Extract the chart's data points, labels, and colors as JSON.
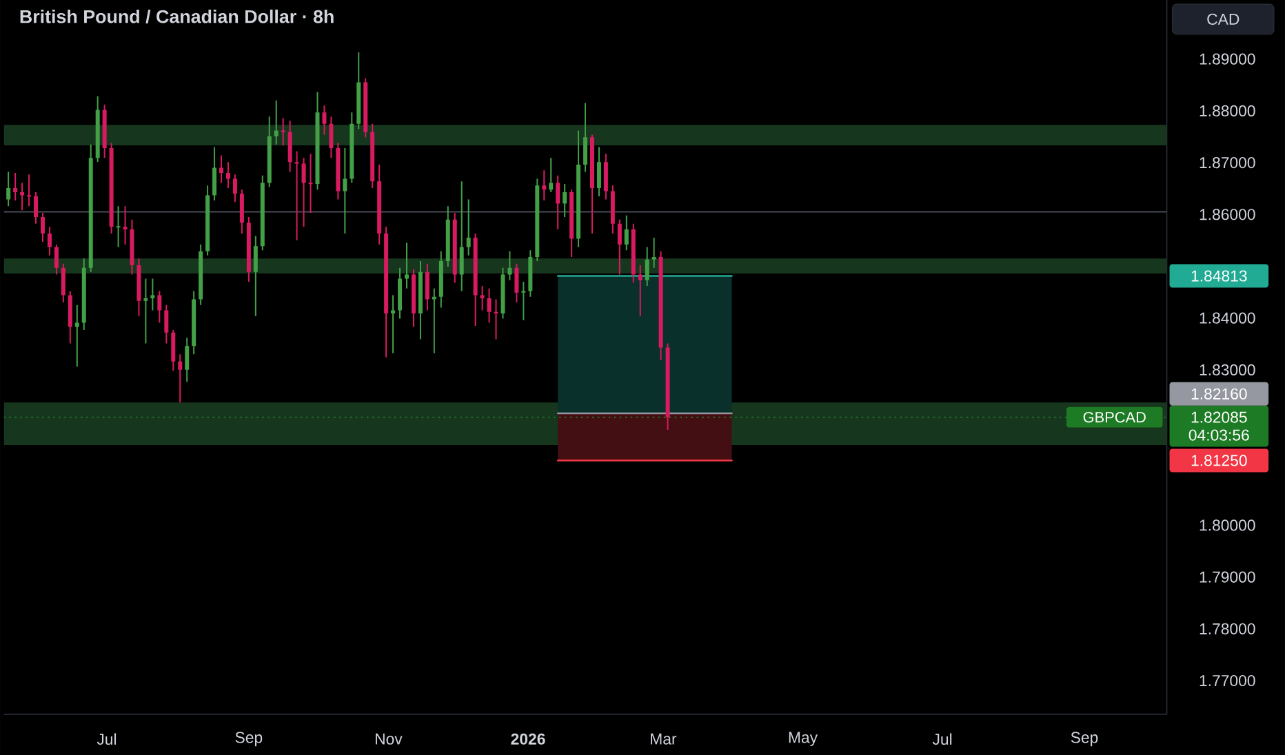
{
  "chart_data": {
    "type": "candlestick",
    "title": "British Pound / Canadian Dollar · 8h",
    "ylabel": "CAD",
    "x": [
      "2025-05-19",
      "2025-05-22",
      "2025-05-25",
      "2025-05-28",
      "2025-05-31",
      "2025-06-03",
      "2025-06-06",
      "2025-06-09",
      "2025-06-12",
      "2025-06-15",
      "2025-06-18",
      "2025-06-21",
      "2025-06-24",
      "2025-06-27",
      "2025-06-30",
      "2025-07-03",
      "2025-07-06",
      "2025-07-09",
      "2025-07-12",
      "2025-07-15",
      "2025-07-18",
      "2025-07-21",
      "2025-07-24",
      "2025-07-27",
      "2025-07-30",
      "2025-08-02",
      "2025-08-05",
      "2025-08-08",
      "2025-08-11",
      "2025-08-14",
      "2025-08-17",
      "2025-08-20",
      "2025-08-23",
      "2025-08-26",
      "2025-08-29",
      "2025-09-01",
      "2025-09-04",
      "2025-09-07",
      "2025-09-10",
      "2025-09-13",
      "2025-09-16",
      "2025-09-19",
      "2025-09-22",
      "2025-09-25",
      "2025-09-28",
      "2025-10-01",
      "2025-10-04",
      "2025-10-07",
      "2025-10-10",
      "2025-10-13",
      "2025-10-16",
      "2025-10-19",
      "2025-10-22",
      "2025-10-25",
      "2025-10-28",
      "2025-10-31",
      "2025-11-03",
      "2025-11-06",
      "2025-11-09",
      "2025-11-12",
      "2025-11-15",
      "2025-11-18",
      "2025-11-21",
      "2025-11-24",
      "2025-11-27",
      "2025-11-30",
      "2025-12-03",
      "2025-12-06",
      "2025-12-09",
      "2025-12-12",
      "2025-12-15",
      "2025-12-18",
      "2025-12-21",
      "2025-12-24",
      "2025-12-27",
      "2025-12-30",
      "2026-01-02",
      "2026-01-05",
      "2026-01-08",
      "2026-01-11",
      "2026-01-14",
      "2026-01-17",
      "2026-01-20",
      "2026-01-23",
      "2026-01-26",
      "2026-01-29",
      "2026-02-01",
      "2026-02-04",
      "2026-02-07",
      "2026-02-10",
      "2026-02-13",
      "2026-02-16",
      "2026-02-19",
      "2026-02-22",
      "2026-02-25",
      "2026-02-28",
      "2026-03-03"
    ],
    "ohlc": [
      [
        1.8629,
        1.8682,
        1.8616,
        1.8651
      ],
      [
        1.8651,
        1.868,
        1.8627,
        1.8643
      ],
      [
        1.8643,
        1.8661,
        1.8608,
        1.8637
      ],
      [
        1.8637,
        1.8677,
        1.8616,
        1.8635
      ],
      [
        1.8635,
        1.8643,
        1.8582,
        1.8595
      ],
      [
        1.8595,
        1.8603,
        1.8547,
        1.8563
      ],
      [
        1.8563,
        1.8576,
        1.8521,
        1.8537
      ],
      [
        1.8537,
        1.8542,
        1.8484,
        1.8497
      ],
      [
        1.8497,
        1.8505,
        1.843,
        1.8444
      ],
      [
        1.8444,
        1.8452,
        1.8351,
        1.8383
      ],
      [
        1.8383,
        1.8425,
        1.8306,
        1.8391
      ],
      [
        1.8391,
        1.8515,
        1.8377,
        1.8497
      ],
      [
        1.8497,
        1.8735,
        1.8489,
        1.8709
      ],
      [
        1.8709,
        1.8828,
        1.8701,
        1.8802
      ],
      [
        1.8802,
        1.8812,
        1.8709,
        1.8728
      ],
      [
        1.8728,
        1.8738,
        1.8563,
        1.8576
      ],
      [
        1.8576,
        1.8616,
        1.8537,
        1.8576
      ],
      [
        1.8576,
        1.8616,
        1.8542,
        1.8571
      ],
      [
        1.8571,
        1.859,
        1.8484,
        1.8502
      ],
      [
        1.8502,
        1.8515,
        1.8404,
        1.8433
      ],
      [
        1.8433,
        1.8476,
        1.8351,
        1.8438
      ],
      [
        1.8438,
        1.8476,
        1.8415,
        1.8444
      ],
      [
        1.8444,
        1.8452,
        1.8391,
        1.8415
      ],
      [
        1.8415,
        1.8425,
        1.8351,
        1.8372
      ],
      [
        1.8372,
        1.8377,
        1.8298,
        1.8316
      ],
      [
        1.8316,
        1.833,
        1.8237,
        1.83
      ],
      [
        1.83,
        1.8362,
        1.8277,
        1.8346
      ],
      [
        1.8346,
        1.8452,
        1.833,
        1.8436
      ],
      [
        1.8436,
        1.8542,
        1.8425,
        1.8529
      ],
      [
        1.8529,
        1.8656,
        1.8521,
        1.8637
      ],
      [
        1.8637,
        1.873,
        1.8627,
        1.869
      ],
      [
        1.869,
        1.8714,
        1.8661,
        1.868
      ],
      [
        1.868,
        1.8701,
        1.8651,
        1.8669
      ],
      [
        1.8669,
        1.8677,
        1.8624,
        1.864
      ],
      [
        1.864,
        1.8648,
        1.8563,
        1.8584
      ],
      [
        1.8584,
        1.8595,
        1.847,
        1.8489
      ],
      [
        1.8489,
        1.8558,
        1.8404,
        1.8539
      ],
      [
        1.8539,
        1.8675,
        1.8531,
        1.8661
      ],
      [
        1.8661,
        1.8789,
        1.8653,
        1.8751
      ],
      [
        1.8751,
        1.882,
        1.8735,
        1.8762
      ],
      [
        1.8762,
        1.8786,
        1.8733,
        1.8759
      ],
      [
        1.8759,
        1.8781,
        1.8682,
        1.8701
      ],
      [
        1.8701,
        1.8722,
        1.855,
        1.8698
      ],
      [
        1.8698,
        1.8709,
        1.8576,
        1.8661
      ],
      [
        1.8661,
        1.8717,
        1.8603,
        1.8659
      ],
      [
        1.8659,
        1.8836,
        1.8648,
        1.8797
      ],
      [
        1.8797,
        1.881,
        1.8754,
        1.8775
      ],
      [
        1.8775,
        1.8789,
        1.8709,
        1.8728
      ],
      [
        1.8728,
        1.8738,
        1.8629,
        1.8645
      ],
      [
        1.8645,
        1.8728,
        1.8563,
        1.8669
      ],
      [
        1.8669,
        1.8797,
        1.8661,
        1.8775
      ],
      [
        1.8775,
        1.8913,
        1.8765,
        1.8855
      ],
      [
        1.8855,
        1.8863,
        1.8749,
        1.8759
      ],
      [
        1.8759,
        1.8775,
        1.8651,
        1.8664
      ],
      [
        1.8664,
        1.8696,
        1.8542,
        1.8563
      ],
      [
        1.8563,
        1.8576,
        1.8324,
        1.8409
      ],
      [
        1.8409,
        1.8444,
        1.8332,
        1.8415
      ],
      [
        1.8415,
        1.8497,
        1.8399,
        1.8476
      ],
      [
        1.8476,
        1.8545,
        1.8457,
        1.8484
      ],
      [
        1.8484,
        1.8494,
        1.8383,
        1.8409
      ],
      [
        1.8409,
        1.851,
        1.8359,
        1.8489
      ],
      [
        1.8489,
        1.8505,
        1.8415,
        1.8436
      ],
      [
        1.8436,
        1.8457,
        1.8332,
        1.8441
      ],
      [
        1.8441,
        1.8529,
        1.842,
        1.851
      ],
      [
        1.851,
        1.8616,
        1.8499,
        1.859
      ],
      [
        1.859,
        1.8603,
        1.8468,
        1.8484
      ],
      [
        1.8484,
        1.8664,
        1.8452,
        1.8537
      ],
      [
        1.8537,
        1.8629,
        1.8521,
        1.8555
      ],
      [
        1.8555,
        1.8563,
        1.8385,
        1.8444
      ],
      [
        1.8444,
        1.8462,
        1.8415,
        1.8438
      ],
      [
        1.8438,
        1.8457,
        1.8391,
        1.8412
      ],
      [
        1.8412,
        1.8436,
        1.8359,
        1.8409
      ],
      [
        1.8409,
        1.8497,
        1.8399,
        1.8484
      ],
      [
        1.8484,
        1.8529,
        1.8473,
        1.8497
      ],
      [
        1.8497,
        1.8505,
        1.843,
        1.8449
      ],
      [
        1.8449,
        1.847,
        1.8396,
        1.8452
      ],
      [
        1.8452,
        1.8531,
        1.8441,
        1.8518
      ],
      [
        1.8518,
        1.8669,
        1.851,
        1.8656
      ],
      [
        1.8656,
        1.8685,
        1.8627,
        1.8648
      ],
      [
        1.8648,
        1.8709,
        1.8643,
        1.8661
      ],
      [
        1.8661,
        1.8675,
        1.8571,
        1.8621
      ],
      [
        1.8621,
        1.8659,
        1.8595,
        1.8643
      ],
      [
        1.8643,
        1.8648,
        1.8518,
        1.8553
      ],
      [
        1.8553,
        1.8762,
        1.8537,
        1.8696
      ],
      [
        1.8696,
        1.8815,
        1.8682,
        1.8749
      ],
      [
        1.8749,
        1.8754,
        1.8563,
        1.8651
      ],
      [
        1.8651,
        1.873,
        1.8635,
        1.8701
      ],
      [
        1.8701,
        1.8717,
        1.8629,
        1.8645
      ],
      [
        1.8645,
        1.8656,
        1.8563,
        1.8582
      ],
      [
        1.8582,
        1.859,
        1.8484,
        1.8542
      ],
      [
        1.8542,
        1.8598,
        1.8531,
        1.8571
      ],
      [
        1.8571,
        1.8582,
        1.8468,
        1.8484
      ],
      [
        1.8484,
        1.8502,
        1.8404,
        1.8473
      ],
      [
        1.8473,
        1.8537,
        1.8462,
        1.8513
      ],
      [
        1.8513,
        1.8555,
        1.8497,
        1.8518
      ],
      [
        1.8518,
        1.8529,
        1.8319,
        1.8343
      ],
      [
        1.8343,
        1.8351,
        1.8184,
        1.82085
      ]
    ],
    "colors": [
      "#43a047",
      "#d81b60",
      "#d81b60",
      "#d81b60",
      "#d81b60",
      "#d81b60",
      "#d81b60",
      "#d81b60",
      "#d81b60",
      "#d81b60",
      "#43a047",
      "#43a047",
      "#43a047",
      "#43a047",
      "#d81b60",
      "#d81b60",
      "#43a047",
      "#d81b60",
      "#d81b60",
      "#d81b60",
      "#43a047",
      "#43a047",
      "#d81b60",
      "#d81b60",
      "#d81b60",
      "#d81b60",
      "#43a047",
      "#43a047",
      "#43a047",
      "#43a047",
      "#43a047",
      "#d81b60",
      "#d81b60",
      "#d81b60",
      "#d81b60",
      "#d81b60",
      "#43a047",
      "#43a047",
      "#43a047",
      "#43a047",
      "#d81b60",
      "#d81b60",
      "#d81b60",
      "#d81b60",
      "#d81b60",
      "#43a047",
      "#d81b60",
      "#d81b60",
      "#d81b60",
      "#43a047",
      "#43a047",
      "#43a047",
      "#d81b60",
      "#d81b60",
      "#d81b60",
      "#d81b60",
      "#43a047",
      "#43a047",
      "#43a047",
      "#d81b60",
      "#43a047",
      "#d81b60",
      "#43a047",
      "#43a047",
      "#43a047",
      "#d81b60",
      "#43a047",
      "#43a047",
      "#d81b60",
      "#d81b60",
      "#d81b60",
      "#d81b60",
      "#43a047",
      "#43a047",
      "#d81b60",
      "#43a047",
      "#43a047",
      "#43a047",
      "#d81b60",
      "#43a047",
      "#d81b60",
      "#43a047",
      "#d81b60",
      "#43a047",
      "#43a047",
      "#d81b60",
      "#43a047",
      "#d81b60",
      "#d81b60",
      "#d81b60",
      "#43a047",
      "#d81b60",
      "#d81b60",
      "#43a047",
      "#43a047",
      "#d81b60",
      "#d81b60"
    ],
    "series": [
      {
        "type": "line",
        "name": "1.84813",
        "x": [
          "2026-01-14",
          "2026-03-31"
        ],
        "values": [
          1.84813,
          1.84813
        ],
        "lower": [
          1.8216,
          1.8216
        ],
        "upper": [
          1.84813,
          1.84813
        ],
        "color": "#22ab94"
      },
      {
        "type": "line",
        "name": "1.82160",
        "x": [
          "2026-01-14",
          "2026-03-31"
        ],
        "values": [
          1.8216,
          1.8216
        ],
        "color": "#9598a1"
      },
      {
        "type": "line",
        "name": "1.81250",
        "x": [
          "2026-01-14",
          "2026-03-31"
        ],
        "values": [
          1.8125,
          1.8125
        ],
        "lower": [
          1.8125,
          1.8125
        ],
        "upper": [
          1.8216,
          1.8216
        ],
        "color": "#f23645"
      }
    ],
    "xlim": [
      "2025-05-17",
      "2026-10-07"
    ],
    "ylim": [
      1.7635,
      1.9014
    ],
    "xticks": [
      {
        "value": "2025-07-01",
        "label": "Jul"
      },
      {
        "value": "2025-09-01",
        "label": "Sep"
      },
      {
        "value": "2025-11-01",
        "label": "Nov"
      },
      {
        "value": "2026-01-01",
        "label": "2026"
      },
      {
        "value": "2026-03-01",
        "label": "Mar"
      },
      {
        "value": "2026-05-01",
        "label": "May"
      },
      {
        "value": "2026-07-01",
        "label": "Jul"
      },
      {
        "value": "2026-09-01",
        "label": "Sep"
      }
    ],
    "yticks": [
      {
        "value": 1.77,
        "label": "1.77000"
      },
      {
        "value": 1.78,
        "label": "1.78000"
      },
      {
        "value": 1.79,
        "label": "1.79000"
      },
      {
        "value": 1.8,
        "label": "1.80000"
      },
      {
        "value": 1.83,
        "label": "1.83000"
      },
      {
        "value": 1.84,
        "label": "1.84000"
      },
      {
        "value": 1.86,
        "label": "1.86000"
      },
      {
        "value": 1.87,
        "label": "1.87000"
      },
      {
        "value": 1.88,
        "label": "1.88000"
      },
      {
        "value": 1.89,
        "label": "1.89000"
      }
    ],
    "bands": [
      {
        "axis": "y",
        "from": 1.8733,
        "to": 1.8773,
        "color": "#17361e"
      },
      {
        "axis": "y",
        "from": 1.8486,
        "to": 1.8515,
        "color": "#17361e"
      },
      {
        "axis": "y",
        "from": 1.8155,
        "to": 1.8237,
        "color": "#17361e"
      }
    ],
    "ref_lines": [
      {
        "axis": "y",
        "value": 1.82085,
        "label": "1.82085",
        "color": "#1e7b25",
        "line_style": "dotted"
      },
      {
        "axis": "y",
        "value": 1.8605,
        "color": "#4a4d55",
        "line_style": "solid"
      }
    ],
    "annotations": [
      "GBPCAD",
      "04:03:56"
    ]
  }
}
